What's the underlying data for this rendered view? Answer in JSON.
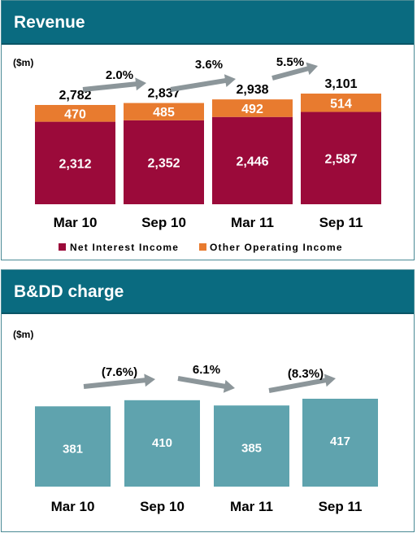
{
  "chart_data": [
    {
      "type": "bar",
      "stacked": true,
      "title": "Revenue",
      "unit_label": "($m)",
      "categories": [
        "Mar 10",
        "Sep 10",
        "Mar 11",
        "Sep 11"
      ],
      "series": [
        {
          "name": "Net Interest Income",
          "values": [
            2312,
            2352,
            2446,
            2587
          ],
          "value_labels": [
            "2,312",
            "2,352",
            "2,446",
            "2,587"
          ],
          "color": "#9b0a3a"
        },
        {
          "name": "Other Operating Income",
          "values": [
            470,
            485,
            492,
            514
          ],
          "value_labels": [
            "470",
            "485",
            "492",
            "514"
          ],
          "color": "#e87b2f"
        }
      ],
      "totals": [
        2782,
        2837,
        2938,
        3101
      ],
      "total_labels": [
        "2,782",
        "2,837",
        "2,938",
        "3,101"
      ],
      "growth_labels": [
        "2.0%",
        "3.6%",
        "5.5%"
      ],
      "legend_position": "bottom",
      "ylim": [
        0,
        3300
      ]
    },
    {
      "type": "bar",
      "title": "B&DD charge",
      "unit_label": "($m)",
      "categories": [
        "Mar 10",
        "Sep 10",
        "Mar 11",
        "Sep 11"
      ],
      "series": [
        {
          "values": [
            381,
            410,
            385,
            417
          ],
          "value_labels": [
            "381",
            "410",
            "385",
            "417"
          ],
          "color": "#5fa3ae"
        }
      ],
      "growth_labels": [
        "(7.6%)",
        "6.1%",
        "(8.3%)"
      ],
      "ylim": [
        0,
        417
      ]
    }
  ],
  "colors": {
    "header": "#0a6b80",
    "arrow": "#8c969a",
    "border": "#4a8a95"
  }
}
